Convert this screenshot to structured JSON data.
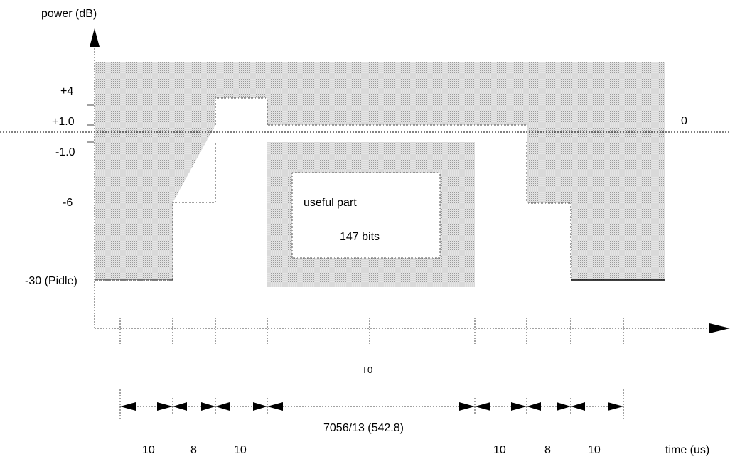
{
  "axes": {
    "y_label": "power (dB)",
    "x_label": "time (us)"
  },
  "y_levels": {
    "plus4": "+4",
    "plus1": "+1.0",
    "zero": "0",
    "minus1": "-1.0",
    "minus6": "-6",
    "idle": "-30 (Pidle)"
  },
  "useful_part": {
    "title": "useful part",
    "bits": "147 bits"
  },
  "time": {
    "t0": "T0",
    "useful_duration": "7056/13 (542.8)",
    "left_durations": [
      "10",
      "8",
      "10"
    ],
    "right_durations": [
      "10",
      "8",
      "10"
    ]
  }
}
